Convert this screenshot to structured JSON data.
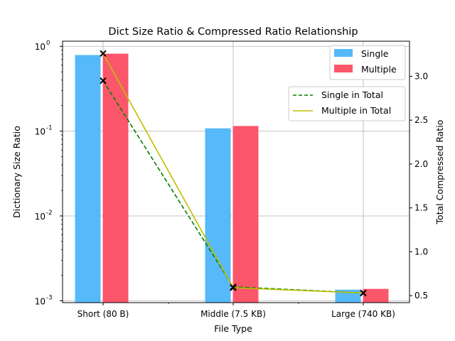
{
  "chart_data": {
    "type": "bar",
    "title": "Dict Size Ratio & Compressed Ratio Relationship",
    "xlabel": "File Type",
    "ylabel": "Dictionary Size Ratio",
    "ylabel_right": "Total Compressed Ratio",
    "categories": [
      "Short (80 B)",
      "Middle (7.5 KB)",
      "Large (740 KB)"
    ],
    "left_axis": {
      "scale": "log",
      "ylim": [
        0.00095,
        1.15
      ],
      "ticks": [
        0.001,
        0.01,
        0.1,
        1
      ],
      "tick_labels": [
        "10",
        "10",
        "10",
        "10"
      ],
      "tick_exponents": [
        "-3",
        "-2",
        "-1",
        "0"
      ]
    },
    "right_axis": {
      "scale": "linear",
      "ylim": [
        0.42,
        3.4
      ],
      "ticks": [
        0.5,
        1.0,
        1.5,
        2.0,
        2.5,
        3.0
      ],
      "tick_labels": [
        "0.5",
        "1.0",
        "1.5",
        "2.0",
        "2.5",
        "3.0"
      ]
    },
    "bar_series": [
      {
        "name": "Single",
        "color": "#56b9f9",
        "values": [
          0.79,
          0.108,
          0.00135
        ]
      },
      {
        "name": "Multiple",
        "color": "#fc566b",
        "values": [
          0.82,
          0.115,
          0.00138
        ]
      }
    ],
    "line_series": [
      {
        "name": "Single in Total",
        "color": "#008000",
        "style": "dashed",
        "values": [
          2.95,
          0.6,
          0.53
        ]
      },
      {
        "name": "Multiple in Total",
        "color": "#bfbf00",
        "style": "solid",
        "values": [
          3.26,
          0.59,
          0.53
        ]
      }
    ],
    "grid": true,
    "legend_bars": "top-right",
    "legend_lines": "upper-right"
  }
}
